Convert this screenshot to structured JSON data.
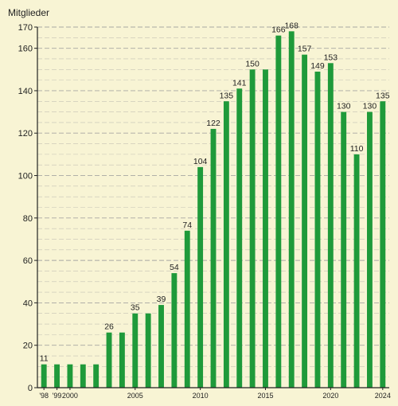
{
  "chart_data": {
    "type": "bar",
    "ylabel": "Mitglieder",
    "xlabel": "",
    "ylim": [
      0,
      170
    ],
    "y_major_ticks": [
      0,
      20,
      40,
      60,
      80,
      100,
      120,
      140,
      160,
      170
    ],
    "y_minor_step": 5,
    "grid": "horizontal dashed",
    "categories": [
      1998,
      1999,
      2000,
      2001,
      2002,
      2003,
      2004,
      2005,
      2006,
      2007,
      2008,
      2009,
      2010,
      2011,
      2012,
      2013,
      2014,
      2015,
      2016,
      2017,
      2018,
      2019,
      2020,
      2021,
      2022,
      2023,
      2024
    ],
    "x_tick_labels": [
      {
        "year": 1998,
        "label": "'98"
      },
      {
        "year": 1999,
        "label": "'99"
      },
      {
        "year": 2000,
        "label": "2000"
      },
      {
        "year": 2005,
        "label": "2005"
      },
      {
        "year": 2010,
        "label": "2010"
      },
      {
        "year": 2015,
        "label": "2015"
      },
      {
        "year": 2020,
        "label": "2020"
      },
      {
        "year": 2024,
        "label": "2024"
      }
    ],
    "values": [
      11,
      11,
      11,
      11,
      11,
      26,
      26,
      35,
      35,
      39,
      54,
      74,
      104,
      122,
      135,
      141,
      150,
      150,
      166,
      168,
      157,
      149,
      153,
      130,
      110,
      130,
      135
    ],
    "data_labels": [
      {
        "year": 1998,
        "label": "11"
      },
      {
        "year": 2003,
        "label": "26"
      },
      {
        "year": 2005,
        "label": "35"
      },
      {
        "year": 2007,
        "label": "39"
      },
      {
        "year": 2008,
        "label": "54"
      },
      {
        "year": 2009,
        "label": "74"
      },
      {
        "year": 2010,
        "label": "104"
      },
      {
        "year": 2011,
        "label": "122"
      },
      {
        "year": 2012,
        "label": "135"
      },
      {
        "year": 2013,
        "label": "141"
      },
      {
        "year": 2014,
        "label": "150"
      },
      {
        "year": 2016,
        "label": "166"
      },
      {
        "year": 2017,
        "label": "168"
      },
      {
        "year": 2018,
        "label": "157"
      },
      {
        "year": 2019,
        "label": "149"
      },
      {
        "year": 2020,
        "label": "153"
      },
      {
        "year": 2021,
        "label": "130"
      },
      {
        "year": 2022,
        "label": "110"
      },
      {
        "year": 2023,
        "label": "130"
      },
      {
        "year": 2024,
        "label": "135"
      }
    ],
    "colors": {
      "bar": "#1f9a3a",
      "background": "#f8f4d4",
      "grid": "#9a9a9a",
      "axis": "#222222"
    }
  }
}
